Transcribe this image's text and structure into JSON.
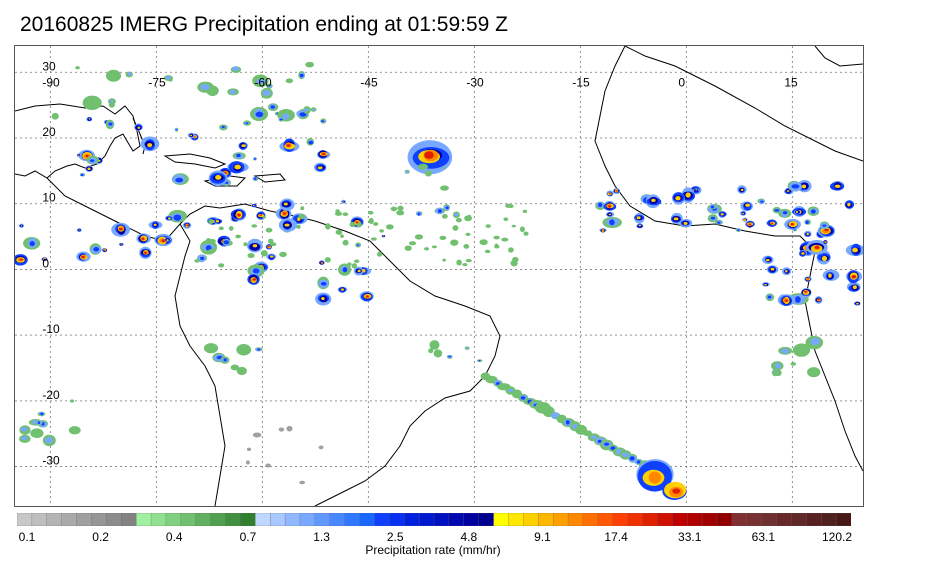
{
  "title": "20160825 IMERG Precipitation ending at 01:59:59 Z",
  "map": {
    "lon_labels": [
      "-90",
      "-75",
      "-60",
      "-45",
      "-30",
      "-15",
      "0",
      "15"
    ],
    "lat_labels": [
      "30",
      "20",
      "10",
      "0",
      "-10",
      "-20",
      "-30"
    ],
    "lon_range": [
      -95,
      25
    ],
    "lat_range": [
      -36,
      34
    ]
  },
  "colorbar": {
    "title": "Precipitation rate (mm/hr)",
    "tick_labels": [
      "0.1",
      "0.2",
      "0.4",
      "0.7",
      "1.3",
      "2.5",
      "4.8",
      "9.1",
      "17.4",
      "33.1",
      "63.1",
      "120.2"
    ],
    "colors": [
      "#c8c8c8",
      "#bebebe",
      "#b4b4b4",
      "#aaaaaa",
      "#a0a0a0",
      "#969696",
      "#8c8c8c",
      "#828282",
      "#a0f0a0",
      "#90e090",
      "#80d080",
      "#70c070",
      "#60b060",
      "#50a050",
      "#409040",
      "#308030",
      "#c0d8ff",
      "#a8c8ff",
      "#90b8ff",
      "#78a8ff",
      "#6098ff",
      "#4888ff",
      "#3078ff",
      "#1868ff",
      "#1040ff",
      "#0830f0",
      "#0020e0",
      "#0018d0",
      "#0010c0",
      "#0008b0",
      "#0000a0",
      "#000090",
      "#ffff00",
      "#ffe800",
      "#ffd000",
      "#ffb800",
      "#ffa000",
      "#ff8800",
      "#ff7000",
      "#ff5800",
      "#ff4000",
      "#f03000",
      "#e02000",
      "#d01000",
      "#c00000",
      "#b00000",
      "#a00000",
      "#900000",
      "#803030",
      "#783030",
      "#703030",
      "#682828",
      "#602828",
      "#582020",
      "#502020",
      "#481818"
    ]
  },
  "precip_colors": {
    "gray": "#a0a0a0",
    "green": "#70c070",
    "light_blue": "#78a8ff",
    "blue": "#1040ff",
    "dark_blue": "#0000a0",
    "yellow": "#ffd000",
    "orange": "#ff8800",
    "red": "#e02000"
  }
}
